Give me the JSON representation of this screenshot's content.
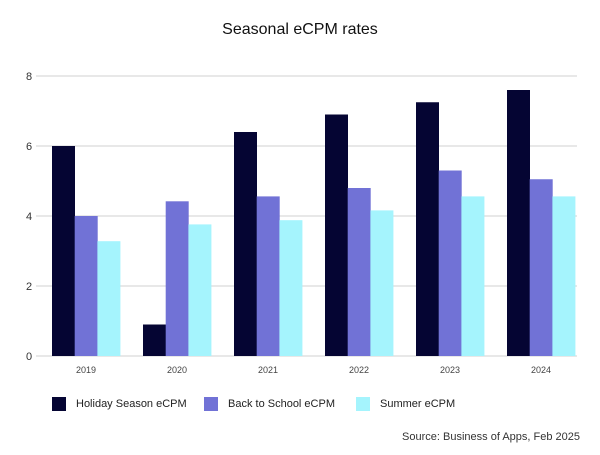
{
  "chart_data": {
    "type": "bar",
    "title": "Seasonal eCPM rates",
    "categories": [
      "2019",
      "2020",
      "2021",
      "2022",
      "2023",
      "2024"
    ],
    "series": [
      {
        "name": "Holiday Season eCPM",
        "color": "#050533",
        "values": [
          6.0,
          0.9,
          6.4,
          6.9,
          7.25,
          7.6
        ]
      },
      {
        "name": "Back to School eCPM",
        "color": "#7172d6",
        "values": [
          4.0,
          4.42,
          4.56,
          4.8,
          5.3,
          5.05
        ]
      },
      {
        "name": "Summer eCPM",
        "color": "#a5f4fd",
        "values": [
          3.28,
          3.76,
          3.88,
          4.16,
          4.56,
          4.56
        ]
      }
    ],
    "ylim": [
      0,
      8
    ],
    "yticks": [
      "0",
      "2",
      "4",
      "6",
      "8"
    ],
    "grid": true,
    "legend_position": "bottom-left",
    "xlabel": "",
    "ylabel": ""
  },
  "source": "Source: Business of Apps, Feb 2025"
}
